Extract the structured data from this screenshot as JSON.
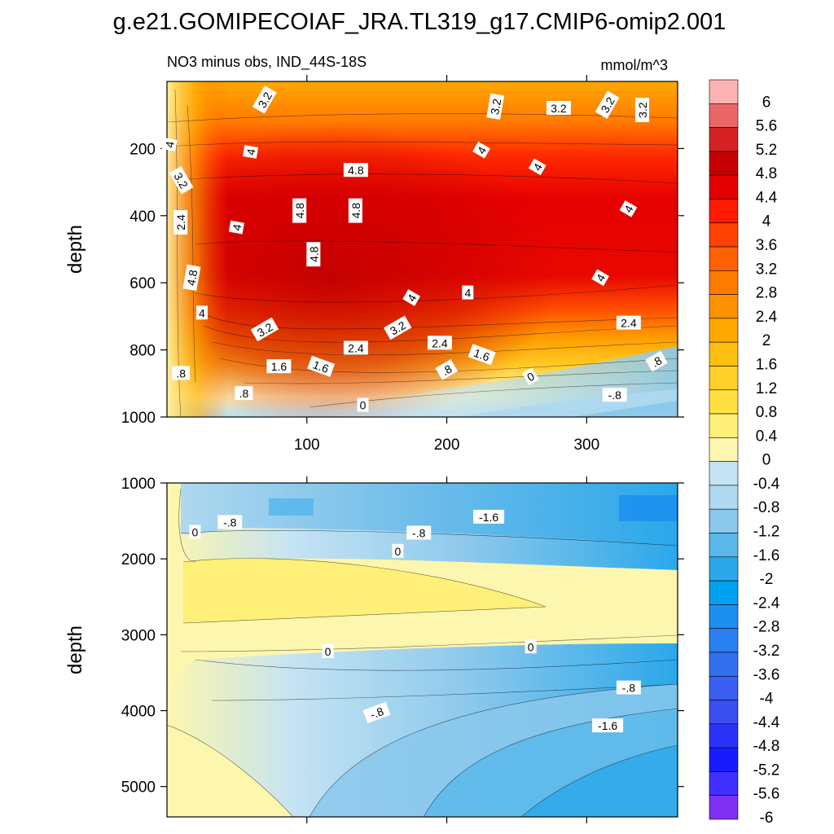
{
  "figure": {
    "title": "g.e21.GOMIPECOIAF_JRA.TL319_g17.CMIP6-omip2.001"
  },
  "chart_data": [
    {
      "type": "contour",
      "panel": "upper",
      "title": "NO3 minus obs, IND_44S-18S",
      "units": "mmol/m^3",
      "ylabel": "depth",
      "xlabel": "",
      "xlim": [
        0,
        365
      ],
      "ylim": [
        1000,
        0
      ],
      "y_reversed": true,
      "x_ticks": [
        100,
        200,
        300
      ],
      "y_ticks": [
        200,
        400,
        600,
        800,
        1000
      ],
      "contour_labels": [
        {
          "text": "3.2",
          "x": 70,
          "y": 55,
          "angle": 60
        },
        {
          "text": "3.2",
          "x": 235,
          "y": 75,
          "angle": 80
        },
        {
          "text": "3.2",
          "x": 280,
          "y": 80,
          "angle": 0
        },
        {
          "text": "3.2",
          "x": 315,
          "y": 70,
          "angle": 60
        },
        {
          "text": "3.2",
          "x": 340,
          "y": 85,
          "angle": 90
        },
        {
          "text": "4",
          "x": 2,
          "y": 188,
          "angle": 80
        },
        {
          "text": "4",
          "x": 60,
          "y": 210,
          "angle": 80
        },
        {
          "text": "4",
          "x": 225,
          "y": 205,
          "angle": 60
        },
        {
          "text": "4",
          "x": 265,
          "y": 255,
          "angle": 60
        },
        {
          "text": "4",
          "x": 330,
          "y": 380,
          "angle": 60
        },
        {
          "text": "4",
          "x": 50,
          "y": 435,
          "angle": 80
        },
        {
          "text": "4",
          "x": 215,
          "y": 630,
          "angle": 0
        },
        {
          "text": "4",
          "x": 175,
          "y": 645,
          "angle": 60
        },
        {
          "text": "4",
          "x": 25,
          "y": 690,
          "angle": 0
        },
        {
          "text": "4",
          "x": 310,
          "y": 585,
          "angle": 60
        },
        {
          "text": "4.8",
          "x": 135,
          "y": 265,
          "angle": 0
        },
        {
          "text": "4.8",
          "x": 95,
          "y": 385,
          "angle": 90
        },
        {
          "text": "4.8",
          "x": 135,
          "y": 385,
          "angle": 90
        },
        {
          "text": "4.8",
          "x": 105,
          "y": 515,
          "angle": 90
        },
        {
          "text": "4.8",
          "x": 18,
          "y": 585,
          "angle": 80
        },
        {
          "text": "3.2",
          "x": 10,
          "y": 295,
          "angle": -60
        },
        {
          "text": "2.4",
          "x": 10,
          "y": 420,
          "angle": 90
        },
        {
          "text": "3.2",
          "x": 70,
          "y": 740,
          "angle": 30
        },
        {
          "text": "3.2",
          "x": 165,
          "y": 735,
          "angle": 30
        },
        {
          "text": "2.4",
          "x": 135,
          "y": 795,
          "angle": 0
        },
        {
          "text": "2.4",
          "x": 195,
          "y": 780,
          "angle": 0
        },
        {
          "text": "2.4",
          "x": 330,
          "y": 720,
          "angle": 0
        },
        {
          "text": "1.6",
          "x": 80,
          "y": 850,
          "angle": 0
        },
        {
          "text": "1.6",
          "x": 110,
          "y": 850,
          "angle": -20
        },
        {
          "text": "1.6",
          "x": 225,
          "y": 815,
          "angle": -20
        },
        {
          "text": ".8",
          "x": 10,
          "y": 870,
          "angle": 0
        },
        {
          "text": ".8",
          "x": 55,
          "y": 930,
          "angle": 0
        },
        {
          "text": ".8",
          "x": 200,
          "y": 860,
          "angle": 30
        },
        {
          "text": ".8",
          "x": 350,
          "y": 835,
          "angle": 30
        },
        {
          "text": "0",
          "x": 140,
          "y": 965,
          "angle": 0
        },
        {
          "text": "0",
          "x": 260,
          "y": 880,
          "angle": 30
        },
        {
          "text": "-.8",
          "x": 320,
          "y": 935,
          "angle": 0
        }
      ]
    },
    {
      "type": "contour",
      "panel": "lower",
      "title": "",
      "ylabel": "depth",
      "xlabel": "",
      "xlim": [
        0,
        365
      ],
      "ylim": [
        5400,
        1000
      ],
      "y_reversed": true,
      "x_ticks": [
        100,
        200,
        300
      ],
      "y_ticks": [
        1000,
        2000,
        3000,
        4000,
        5000
      ],
      "contour_labels": [
        {
          "text": "-.8",
          "x": 45,
          "y": 1520,
          "angle": 0
        },
        {
          "text": "-1.6",
          "x": 230,
          "y": 1450,
          "angle": 0
        },
        {
          "text": "-.8",
          "x": 180,
          "y": 1660,
          "angle": 0
        },
        {
          "text": "0",
          "x": 20,
          "y": 1650,
          "angle": 0
        },
        {
          "text": "0",
          "x": 165,
          "y": 1900,
          "angle": 0
        },
        {
          "text": "0",
          "x": 115,
          "y": 3220,
          "angle": 0
        },
        {
          "text": "0",
          "x": 260,
          "y": 3160,
          "angle": 0
        },
        {
          "text": "-.8",
          "x": 330,
          "y": 3700,
          "angle": 0
        },
        {
          "text": "-.8",
          "x": 150,
          "y": 4030,
          "angle": 20
        },
        {
          "text": "-1.6",
          "x": 315,
          "y": 4200,
          "angle": 0
        }
      ]
    }
  ],
  "colorbar": {
    "labels": [
      "6",
      "5.6",
      "5.2",
      "4.8",
      "4.4",
      "4",
      "3.6",
      "3.2",
      "2.8",
      "2.4",
      "2",
      "1.6",
      "1.2",
      "0.8",
      "0.4",
      "0",
      "-0.4",
      "-0.8",
      "-1.2",
      "-1.6",
      "-2",
      "-2.4",
      "-2.8",
      "-3.2",
      "-3.6",
      "-4",
      "-4.4",
      "-4.8",
      "-5.2",
      "-5.6",
      "-6"
    ],
    "colors": [
      "#fdb3b3",
      "#eb6766",
      "#d42222",
      "#c60000",
      "#e20000",
      "#ff1a00",
      "#ff4000",
      "#ff6000",
      "#ff7a00",
      "#ff9200",
      "#ffa800",
      "#ffbf10",
      "#ffd02a",
      "#ffe040",
      "#fff07a",
      "#fdf6ae",
      "#c4e3f3",
      "#aed8ef",
      "#8ac8ec",
      "#5ab8ea",
      "#2aa8ea",
      "#00a0f0",
      "#1a8ff0",
      "#2a7ff0",
      "#3370ee",
      "#3a5ff0",
      "#3a4ff0",
      "#2a33f5",
      "#1a1aff",
      "#4030ff",
      "#8030f0"
    ]
  }
}
